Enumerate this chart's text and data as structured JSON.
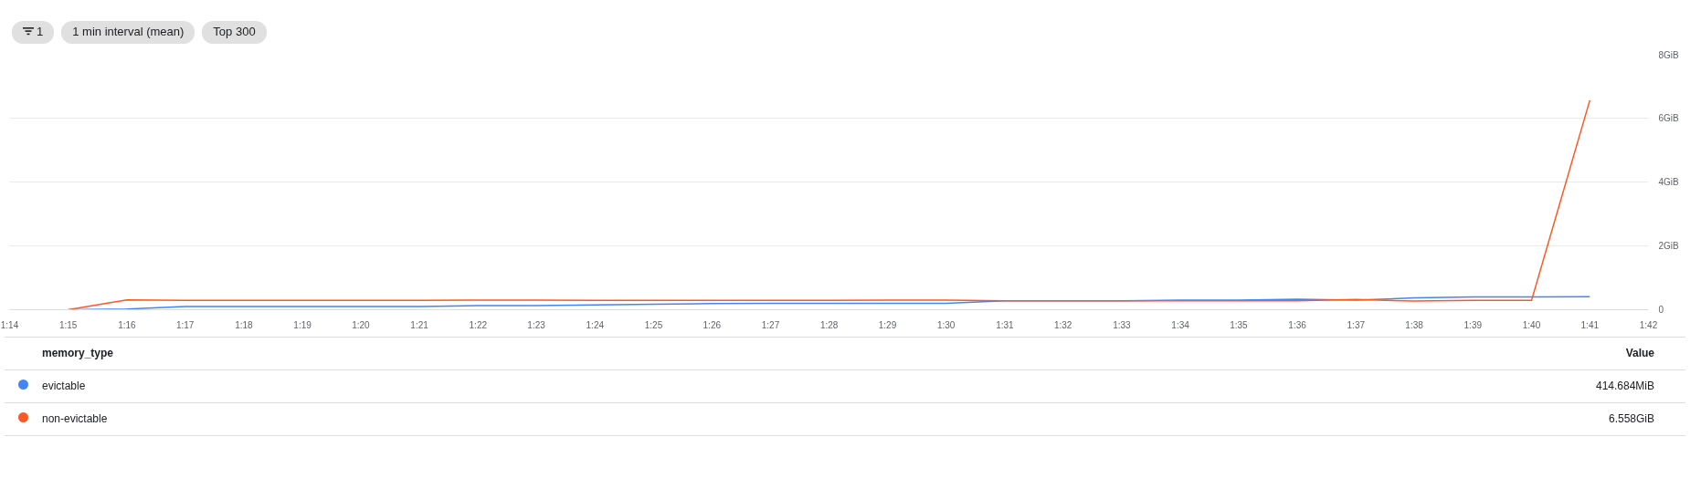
{
  "chart_data": {
    "type": "line",
    "x": [
      1.25,
      1.2667,
      1.2833,
      1.3,
      1.3167,
      1.3333,
      1.35,
      1.3667,
      1.3833,
      1.4,
      1.4167,
      1.4333,
      1.45,
      1.4667,
      1.4833,
      1.5,
      1.5167,
      1.5333,
      1.55,
      1.5667,
      1.5833,
      1.6,
      1.6167,
      1.6333,
      1.65,
      1.6667,
      1.6833
    ],
    "series": [
      {
        "name": "evictable",
        "color": "#4285f4",
        "values": [
          0,
          0.02,
          0.1,
          0.1,
          0.1,
          0.1,
          0.1,
          0.13,
          0.13,
          0.15,
          0.17,
          0.19,
          0.2,
          0.2,
          0.2,
          0.2,
          0.28,
          0.28,
          0.28,
          0.3,
          0.3,
          0.33,
          0.3,
          0.37,
          0.4,
          0.4,
          0.41
        ]
      },
      {
        "name": "non-evictable",
        "color": "#ff5722",
        "values": [
          0,
          0.31,
          0.29,
          0.29,
          0.29,
          0.29,
          0.29,
          0.3,
          0.3,
          0.29,
          0.29,
          0.29,
          0.29,
          0.29,
          0.3,
          0.3,
          0.28,
          0.28,
          0.28,
          0.28,
          0.28,
          0.28,
          0.32,
          0.27,
          0.29,
          0.29,
          6.56
        ]
      }
    ],
    "xlim": [
      1.2333,
      1.7
    ],
    "xticks": [
      {
        "value": 1.2333,
        "label": "1:14"
      },
      {
        "value": 1.25,
        "label": "1:15"
      },
      {
        "value": 1.2667,
        "label": "1:16"
      },
      {
        "value": 1.2833,
        "label": "1:17"
      },
      {
        "value": 1.3,
        "label": "1:18"
      },
      {
        "value": 1.3167,
        "label": "1:19"
      },
      {
        "value": 1.3333,
        "label": "1:20"
      },
      {
        "value": 1.35,
        "label": "1:21"
      },
      {
        "value": 1.3667,
        "label": "1:22"
      },
      {
        "value": 1.3833,
        "label": "1:23"
      },
      {
        "value": 1.4,
        "label": "1:24"
      },
      {
        "value": 1.4167,
        "label": "1:25"
      },
      {
        "value": 1.4333,
        "label": "1:26"
      },
      {
        "value": 1.45,
        "label": "1:27"
      },
      {
        "value": 1.4667,
        "label": "1:28"
      },
      {
        "value": 1.4833,
        "label": "1:29"
      },
      {
        "value": 1.5,
        "label": "1:30"
      },
      {
        "value": 1.5167,
        "label": "1:31"
      },
      {
        "value": 1.5333,
        "label": "1:32"
      },
      {
        "value": 1.55,
        "label": "1:33"
      },
      {
        "value": 1.5667,
        "label": "1:34"
      },
      {
        "value": 1.5833,
        "label": "1:35"
      },
      {
        "value": 1.6,
        "label": "1:36"
      },
      {
        "value": 1.6167,
        "label": "1:37"
      },
      {
        "value": 1.6333,
        "label": "1:38"
      },
      {
        "value": 1.65,
        "label": "1:39"
      },
      {
        "value": 1.6667,
        "label": "1:40"
      },
      {
        "value": 1.6833,
        "label": "1:41"
      },
      {
        "value": 1.7,
        "label": "1:42"
      }
    ],
    "ylim": [
      0,
      8
    ],
    "yticks": [
      0,
      {
        "value": 2,
        "label": "2GiB"
      },
      {
        "value": 4,
        "label": "4GiB"
      },
      {
        "value": 6,
        "label": "6GiB"
      },
      {
        "value": 8,
        "label": "8GiB"
      }
    ],
    "grid": "y",
    "legend": "bottom",
    "legend_title": "memory_type",
    "annotations": [
      "1",
      "1 min interval (mean)",
      "Top 300",
      "Value",
      "414.684MiB",
      "6.558GiB"
    ]
  }
}
